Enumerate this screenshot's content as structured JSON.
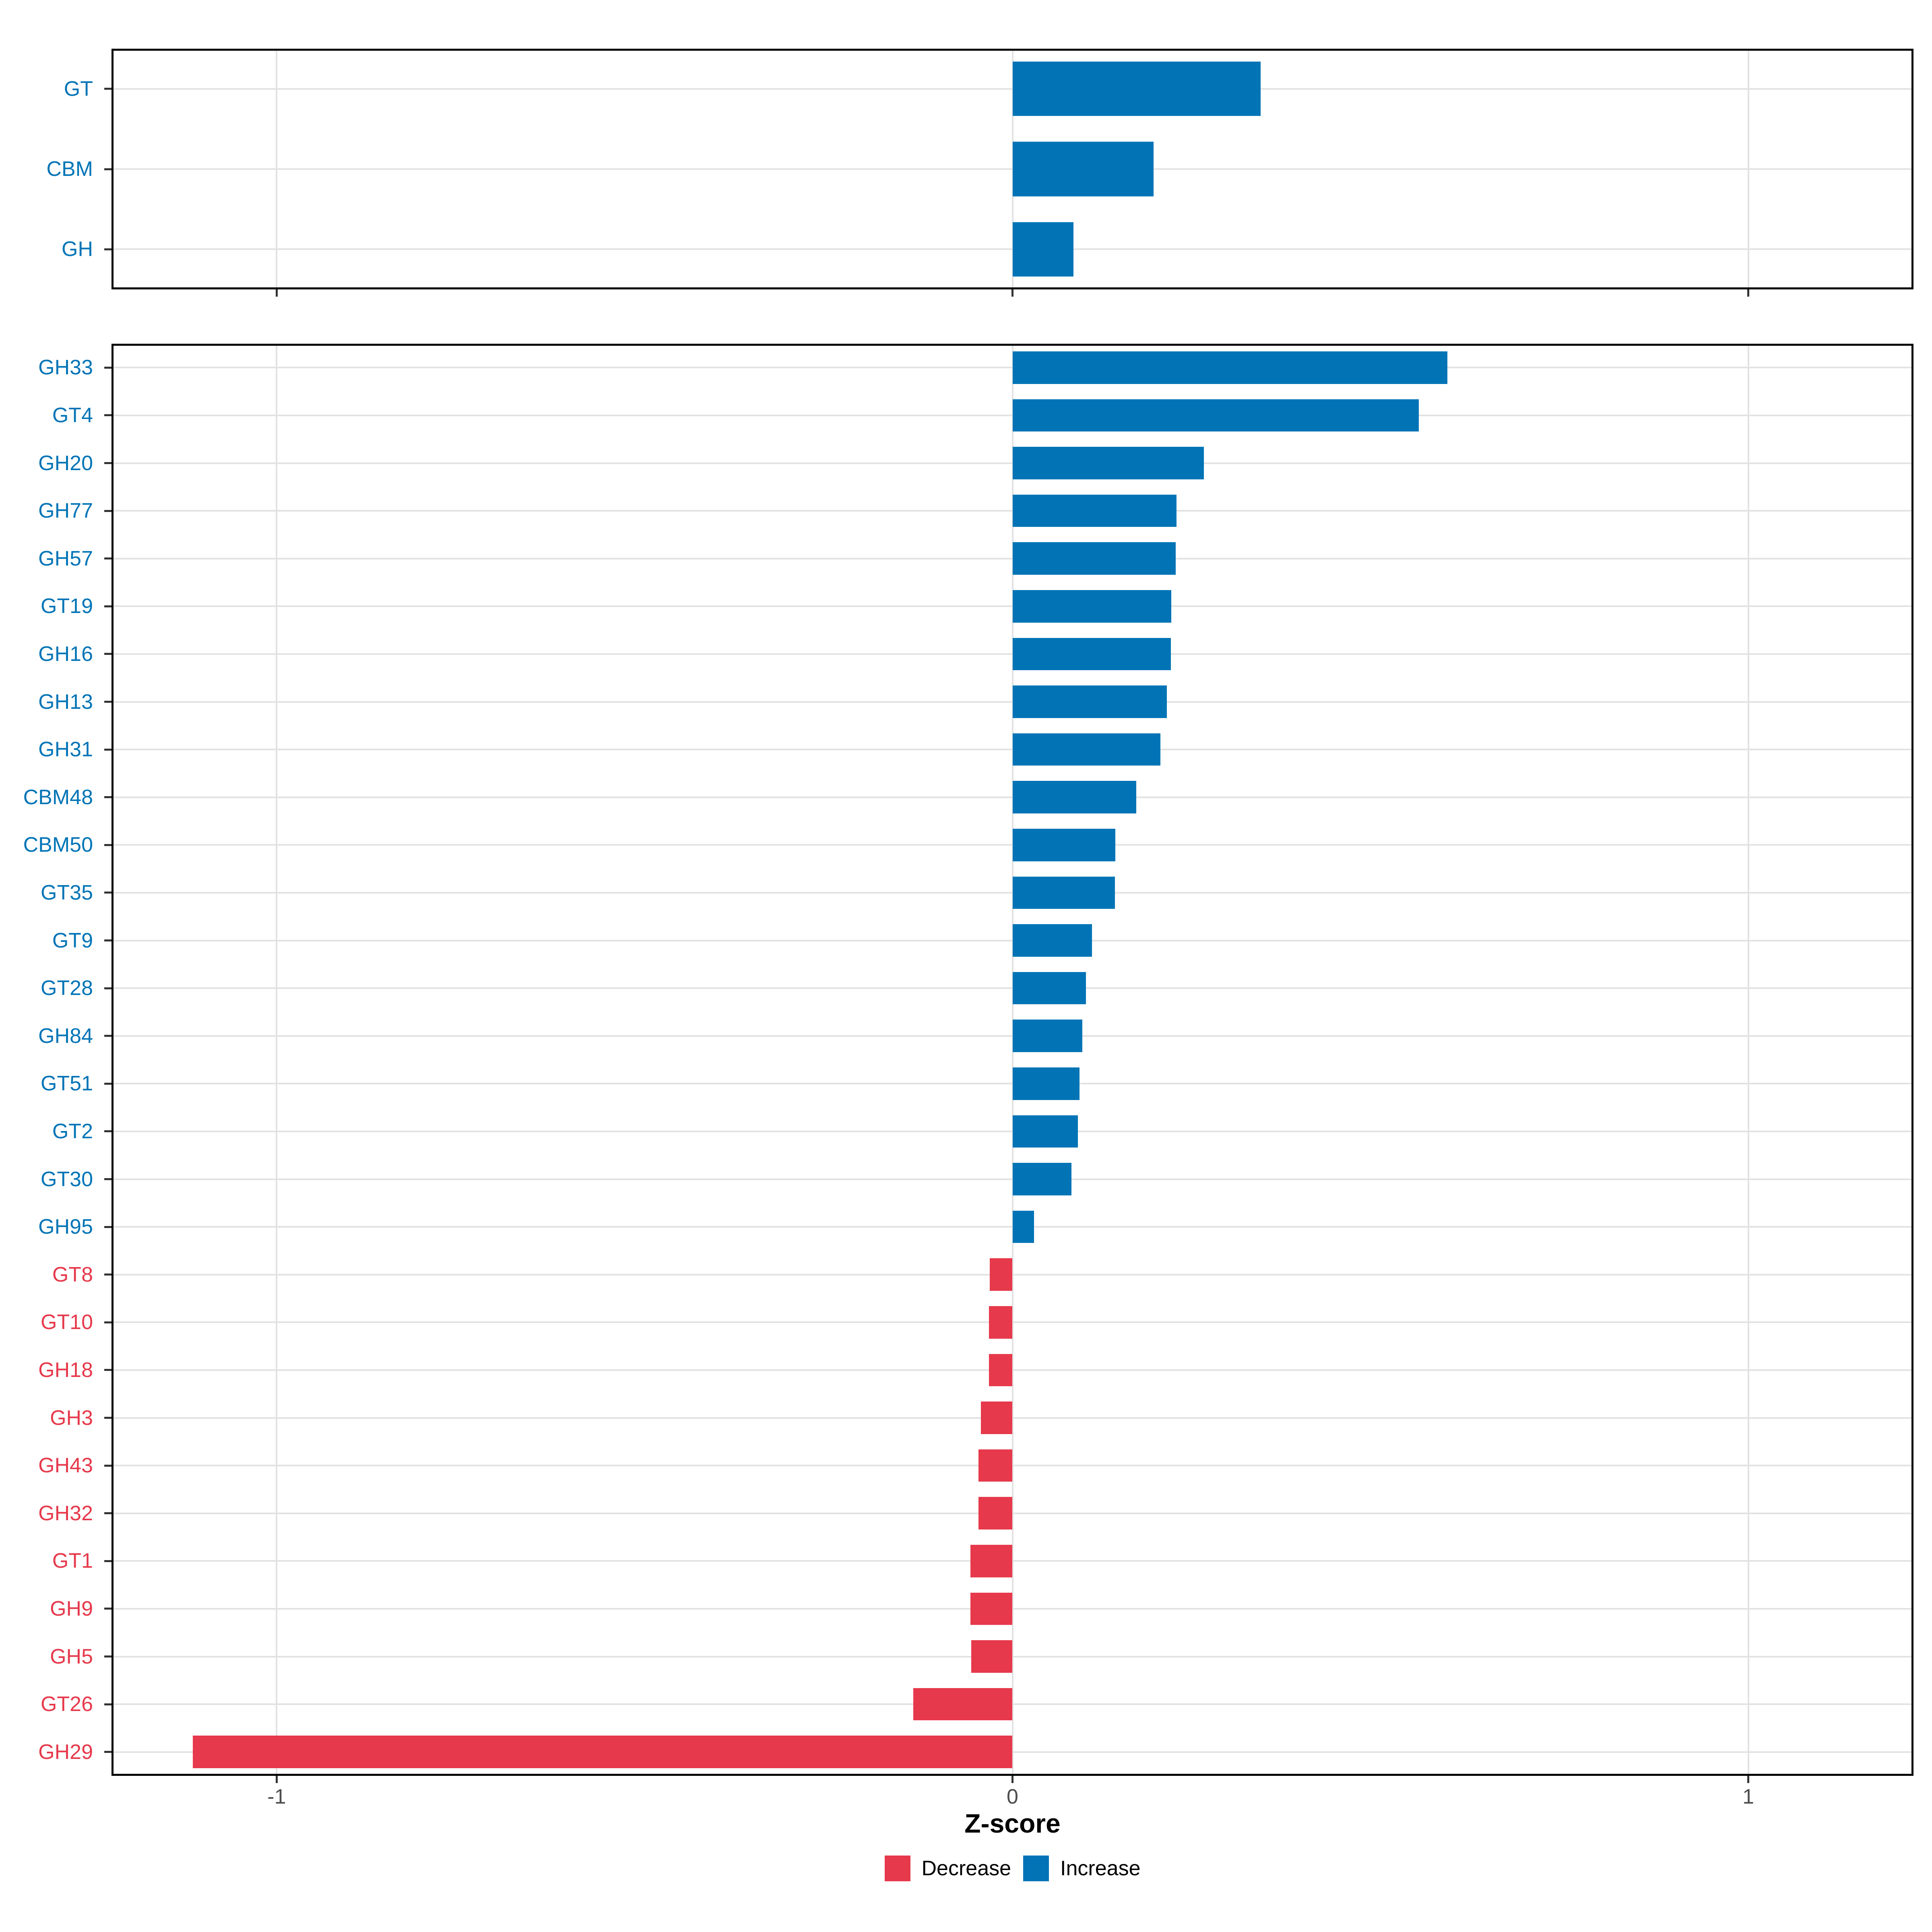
{
  "chart_data": [
    {
      "type": "bar",
      "orientation": "horizontal",
      "panel": "classes",
      "categories": [
        "GT",
        "CBM",
        "GH"
      ],
      "values": [
        0.337,
        0.192,
        0.083
      ],
      "directions": [
        "Increase",
        "Increase",
        "Increase"
      ]
    },
    {
      "type": "bar",
      "orientation": "horizontal",
      "panel": "families",
      "categories": [
        "GH33",
        "GT4",
        "GH20",
        "GH77",
        "GH57",
        "GT19",
        "GH16",
        "GH13",
        "GH31",
        "CBM48",
        "CBM50",
        "GT35",
        "GT9",
        "GT28",
        "GH84",
        "GT51",
        "GT2",
        "GT30",
        "GH95",
        "GT8",
        "GT10",
        "GH18",
        "GH3",
        "GH43",
        "GH32",
        "GT1",
        "GH9",
        "GH5",
        "GT26",
        "GH29"
      ],
      "values": [
        0.591,
        0.552,
        0.26,
        0.223,
        0.222,
        0.216,
        0.215,
        0.21,
        0.201,
        0.168,
        0.14,
        0.139,
        0.108,
        0.1,
        0.095,
        0.091,
        0.089,
        0.08,
        0.029,
        -0.031,
        -0.032,
        -0.032,
        -0.043,
        -0.046,
        -0.046,
        -0.057,
        -0.057,
        -0.056,
        -0.135,
        -1.114
      ],
      "directions": [
        "Increase",
        "Increase",
        "Increase",
        "Increase",
        "Increase",
        "Increase",
        "Increase",
        "Increase",
        "Increase",
        "Increase",
        "Increase",
        "Increase",
        "Increase",
        "Increase",
        "Increase",
        "Increase",
        "Increase",
        "Increase",
        "Increase",
        "Decrease",
        "Decrease",
        "Decrease",
        "Decrease",
        "Decrease",
        "Decrease",
        "Decrease",
        "Decrease",
        "Decrease",
        "Decrease",
        "Decrease"
      ]
    }
  ],
  "axis": {
    "xlabel": "Z-score",
    "ticks": [
      -1,
      0,
      1
    ],
    "tick_labels": [
      "-1",
      "0",
      "1"
    ],
    "xlim": [
      -1.2245,
      1.2245
    ],
    "grid": "major-x-gridlines and one-gridline-per-category-row"
  },
  "legend": {
    "position": "bottom-center",
    "items": [
      {
        "label": "Decrease",
        "color": "#E6394B"
      },
      {
        "label": "Increase",
        "color": "#0274B6"
      }
    ]
  },
  "colors": {
    "increase": "#0274B6",
    "decrease": "#E6394B",
    "gridline": "#E2E2E2",
    "panel_border": "#000000",
    "tick_mark": "#333333",
    "tick_label_text": "#4D4D4D",
    "axis_title_text": "#000000",
    "background": "#FFFFFF"
  }
}
